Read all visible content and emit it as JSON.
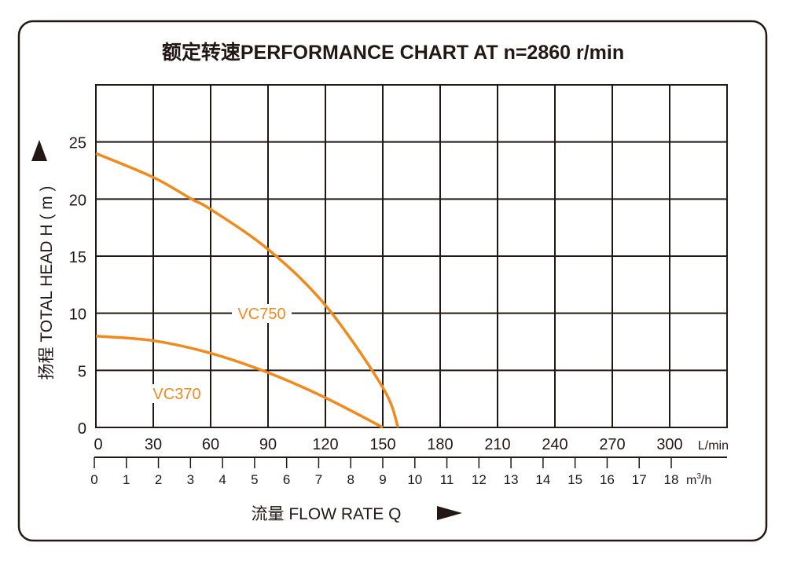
{
  "chart_data": {
    "type": "line",
    "title": "额定转速PERFORMANCE CHART AT  n=2860 r/min",
    "xlabel": "流量 FLOW RATE  Q",
    "ylabel": "扬程 TOTAL HEAD  H ( m )",
    "xlim": [
      0,
      330
    ],
    "ylim": [
      0,
      30
    ],
    "grid": true,
    "x_unit": "L/min",
    "x_ticks": [
      0,
      30,
      60,
      90,
      120,
      150,
      180,
      210,
      240,
      270,
      300
    ],
    "y_ticks": [
      0,
      5,
      10,
      15,
      20,
      25
    ],
    "secondary_x": {
      "unit": "m³/h",
      "unit_base": "m",
      "unit_sup": "3",
      "unit_tail": "/h",
      "ticks": [
        0,
        1,
        2,
        3,
        4,
        5,
        6,
        7,
        8,
        9,
        10,
        11,
        12,
        13,
        14,
        15,
        16,
        17,
        18
      ]
    },
    "series": [
      {
        "name": "VC750",
        "color": "#f08a1c",
        "x": [
          0,
          30,
          50,
          60,
          90,
          120,
          150,
          158
        ],
        "y": [
          24,
          21.9,
          20,
          19.1,
          15.6,
          10.7,
          3.5,
          0
        ]
      },
      {
        "name": "VC370",
        "color": "#f08a1c",
        "x": [
          0,
          30,
          60,
          90,
          120,
          150
        ],
        "y": [
          8,
          7.6,
          6.5,
          4.8,
          2.6,
          0
        ]
      }
    ]
  }
}
